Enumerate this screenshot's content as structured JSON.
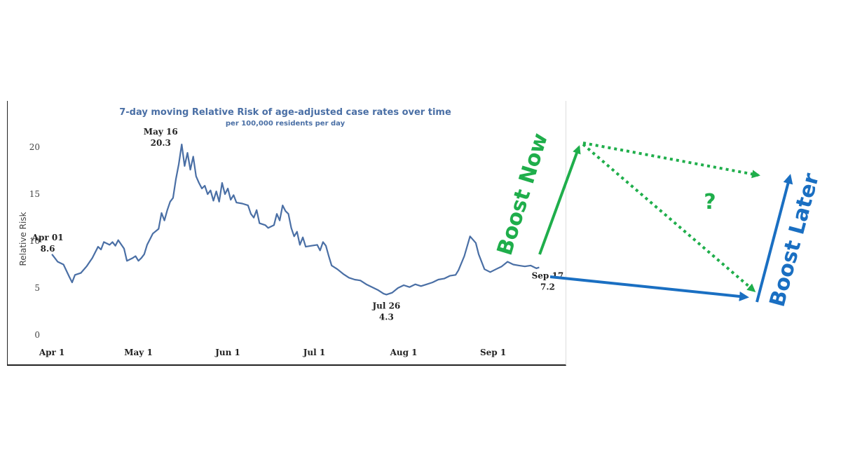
{
  "chart_data": {
    "type": "line",
    "title": "7-day moving Relative Risk of age-adjusted case rates over time",
    "subtitle": "per 100,000 residents per day",
    "ylabel": "Relative Risk",
    "xlabel": "",
    "ylim": [
      0,
      21.5
    ],
    "yticks": [
      0,
      5,
      10,
      15,
      20
    ],
    "x_start": "2021-03-31",
    "x_end": "2021-09-22",
    "xticks": [
      {
        "label": "Apr 1",
        "date": "2021-04-01"
      },
      {
        "label": "May 1",
        "date": "2021-05-01"
      },
      {
        "label": "Jun 1",
        "date": "2021-06-01"
      },
      {
        "label": "Jul 1",
        "date": "2021-07-01"
      },
      {
        "label": "Aug 1",
        "date": "2021-08-01"
      },
      {
        "label": "Sep 1",
        "date": "2021-09-01"
      }
    ],
    "grid": false,
    "line_color": "#4a6fa5",
    "series": [
      {
        "name": "",
        "points": [
          [
            "2021-04-01",
            8.6
          ],
          [
            "2021-04-03",
            7.8
          ],
          [
            "2021-04-05",
            7.5
          ],
          [
            "2021-04-07",
            6.2
          ],
          [
            "2021-04-08",
            5.6
          ],
          [
            "2021-04-09",
            6.4
          ],
          [
            "2021-04-11",
            6.6
          ],
          [
            "2021-04-13",
            7.3
          ],
          [
            "2021-04-15",
            8.2
          ],
          [
            "2021-04-17",
            9.4
          ],
          [
            "2021-04-18",
            9.1
          ],
          [
            "2021-04-19",
            9.9
          ],
          [
            "2021-04-21",
            9.6
          ],
          [
            "2021-04-22",
            9.9
          ],
          [
            "2021-04-23",
            9.5
          ],
          [
            "2021-04-24",
            10.1
          ],
          [
            "2021-04-26",
            9.2
          ],
          [
            "2021-04-27",
            7.9
          ],
          [
            "2021-04-29",
            8.2
          ],
          [
            "2021-04-30",
            8.4
          ],
          [
            "2021-05-01",
            7.9
          ],
          [
            "2021-05-02",
            8.2
          ],
          [
            "2021-05-03",
            8.6
          ],
          [
            "2021-05-04",
            9.6
          ],
          [
            "2021-05-05",
            10.2
          ],
          [
            "2021-05-06",
            10.8
          ],
          [
            "2021-05-08",
            11.3
          ],
          [
            "2021-05-09",
            13.0
          ],
          [
            "2021-05-10",
            12.2
          ],
          [
            "2021-05-11",
            13.3
          ],
          [
            "2021-05-12",
            14.2
          ],
          [
            "2021-05-13",
            14.6
          ],
          [
            "2021-05-14",
            16.6
          ],
          [
            "2021-05-15",
            18.2
          ],
          [
            "2021-05-16",
            20.3
          ],
          [
            "2021-05-17",
            18.0
          ],
          [
            "2021-05-18",
            19.4
          ],
          [
            "2021-05-19",
            17.6
          ],
          [
            "2021-05-20",
            19.0
          ],
          [
            "2021-05-21",
            16.9
          ],
          [
            "2021-05-22",
            16.2
          ],
          [
            "2021-05-23",
            15.6
          ],
          [
            "2021-05-24",
            15.9
          ],
          [
            "2021-05-25",
            15.0
          ],
          [
            "2021-05-26",
            15.4
          ],
          [
            "2021-05-27",
            14.3
          ],
          [
            "2021-05-28",
            15.3
          ],
          [
            "2021-05-29",
            14.2
          ],
          [
            "2021-05-30",
            16.2
          ],
          [
            "2021-05-31",
            15.0
          ],
          [
            "2021-06-01",
            15.6
          ],
          [
            "2021-06-02",
            14.4
          ],
          [
            "2021-06-03",
            14.9
          ],
          [
            "2021-06-04",
            14.1
          ],
          [
            "2021-06-06",
            14.0
          ],
          [
            "2021-06-08",
            13.8
          ],
          [
            "2021-06-09",
            12.9
          ],
          [
            "2021-06-10",
            12.5
          ],
          [
            "2021-06-11",
            13.3
          ],
          [
            "2021-06-12",
            11.9
          ],
          [
            "2021-06-14",
            11.7
          ],
          [
            "2021-06-15",
            11.4
          ],
          [
            "2021-06-17",
            11.7
          ],
          [
            "2021-06-18",
            12.9
          ],
          [
            "2021-06-19",
            12.2
          ],
          [
            "2021-06-20",
            13.8
          ],
          [
            "2021-06-21",
            13.2
          ],
          [
            "2021-06-22",
            12.9
          ],
          [
            "2021-06-23",
            11.4
          ],
          [
            "2021-06-24",
            10.5
          ],
          [
            "2021-06-25",
            11.0
          ],
          [
            "2021-06-26",
            9.6
          ],
          [
            "2021-06-27",
            10.4
          ],
          [
            "2021-06-28",
            9.4
          ],
          [
            "2021-06-30",
            9.5
          ],
          [
            "2021-07-02",
            9.6
          ],
          [
            "2021-07-03",
            9.0
          ],
          [
            "2021-07-04",
            9.9
          ],
          [
            "2021-07-05",
            9.5
          ],
          [
            "2021-07-06",
            8.4
          ],
          [
            "2021-07-07",
            7.4
          ],
          [
            "2021-07-09",
            7.0
          ],
          [
            "2021-07-11",
            6.5
          ],
          [
            "2021-07-13",
            6.1
          ],
          [
            "2021-07-15",
            5.9
          ],
          [
            "2021-07-17",
            5.8
          ],
          [
            "2021-07-19",
            5.4
          ],
          [
            "2021-07-21",
            5.1
          ],
          [
            "2021-07-23",
            4.8
          ],
          [
            "2021-07-25",
            4.4
          ],
          [
            "2021-07-26",
            4.3
          ],
          [
            "2021-07-28",
            4.5
          ],
          [
            "2021-07-30",
            5.0
          ],
          [
            "2021-08-01",
            5.3
          ],
          [
            "2021-08-03",
            5.1
          ],
          [
            "2021-08-05",
            5.4
          ],
          [
            "2021-08-07",
            5.2
          ],
          [
            "2021-08-09",
            5.4
          ],
          [
            "2021-08-11",
            5.6
          ],
          [
            "2021-08-13",
            5.9
          ],
          [
            "2021-08-15",
            6.0
          ],
          [
            "2021-08-17",
            6.3
          ],
          [
            "2021-08-19",
            6.4
          ],
          [
            "2021-08-20",
            6.9
          ],
          [
            "2021-08-22",
            8.4
          ],
          [
            "2021-08-24",
            10.5
          ],
          [
            "2021-08-26",
            9.8
          ],
          [
            "2021-08-27",
            8.6
          ],
          [
            "2021-08-29",
            7.0
          ],
          [
            "2021-08-31",
            6.7
          ],
          [
            "2021-09-02",
            7.0
          ],
          [
            "2021-09-04",
            7.3
          ],
          [
            "2021-09-06",
            7.8
          ],
          [
            "2021-09-08",
            7.5
          ],
          [
            "2021-09-10",
            7.4
          ],
          [
            "2021-09-12",
            7.3
          ],
          [
            "2021-09-14",
            7.4
          ],
          [
            "2021-09-16",
            7.1
          ],
          [
            "2021-09-17",
            7.2
          ]
        ]
      }
    ],
    "annotations": [
      {
        "date": "2021-04-01",
        "value": 8.6,
        "label": "Apr 01",
        "value_label": "8.6"
      },
      {
        "date": "2021-05-16",
        "value": 20.3,
        "label": "May 16",
        "value_label": "20.3"
      },
      {
        "date": "2021-07-26",
        "value": 4.3,
        "label": "Jul 26",
        "value_label": "4.3"
      },
      {
        "date": "2021-09-17",
        "value": 7.2,
        "label": "Sep 17",
        "value_label": "7.2"
      }
    ]
  },
  "diagram": {
    "boost_now_label": "Boost Now",
    "boost_later_label": "Boost Later",
    "question_label": "?",
    "green": "#1fae4b",
    "blue": "#1a6fc2"
  }
}
